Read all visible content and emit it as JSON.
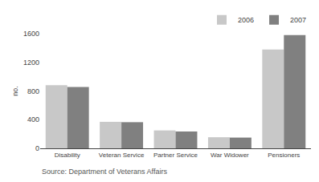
{
  "chart_data": {
    "type": "bar",
    "categories": [
      "Disability",
      "Veteran Service",
      "Partner Service",
      "War Widower",
      "Pensioners"
    ],
    "series": [
      {
        "name": "2006",
        "color": "#c8c8c8",
        "values": [
          880,
          370,
          250,
          155,
          1380
        ]
      },
      {
        "name": "2007",
        "color": "#808080",
        "values": [
          855,
          365,
          235,
          150,
          1580
        ]
      }
    ],
    "ylabel": "no.",
    "ylim": [
      0,
      1600
    ],
    "yticks": [
      0,
      400,
      800,
      1200,
      1600
    ],
    "annotations": [
      "Source: Department of Veterans Affairs"
    ],
    "legend": "upper right",
    "grid": false
  }
}
